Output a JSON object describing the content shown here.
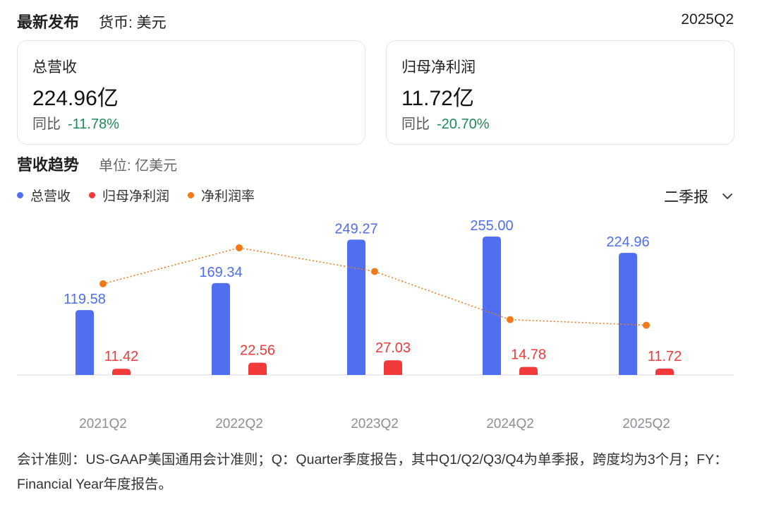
{
  "header": {
    "title": "最新发布",
    "currency": "货币: 美元",
    "period": "2025Q2"
  },
  "cards": [
    {
      "label": "总营收",
      "value": "224.96亿",
      "yoy_label": "同比",
      "yoy_value": "-11.78%"
    },
    {
      "label": "归母净利润",
      "value": "11.72亿",
      "yoy_label": "同比",
      "yoy_value": "-20.70%"
    }
  ],
  "trend": {
    "title": "营收趋势",
    "unit": "单位: 亿美元",
    "period_selector": "二季报"
  },
  "colors": {
    "revenue": "#4f6ef2",
    "profit": "#f23a3a",
    "margin": "#f07a1a",
    "positive_negative_change": "#1e8a5a"
  },
  "chart_data": {
    "type": "bar",
    "categories": [
      "2021Q2",
      "2022Q2",
      "2023Q2",
      "2024Q2",
      "2025Q2"
    ],
    "series": [
      {
        "name": "总营收",
        "type": "bar",
        "values": [
          119.58,
          169.34,
          249.27,
          255.0,
          224.96
        ],
        "labels": [
          "119.58",
          "169.34",
          "249.27",
          "255.00",
          "224.96"
        ]
      },
      {
        "name": "归母净利润",
        "type": "bar",
        "values": [
          11.42,
          22.56,
          27.03,
          14.78,
          11.72
        ],
        "labels": [
          "11.42",
          "22.56",
          "27.03",
          "14.78",
          "11.72"
        ]
      },
      {
        "name": "净利润率",
        "type": "line",
        "values": [
          9.55,
          13.32,
          10.84,
          5.8,
          5.21
        ]
      }
    ],
    "ylim": [
      0,
      255
    ],
    "grid": false,
    "legend": "top-left"
  },
  "footnote": "会计准则：US-GAAP美国通用会计准则；Q：Quarter季度报告，其中Q1/Q2/Q3/Q4为单季报，跨度均为3个月；FY：Financial Year年度报告。"
}
